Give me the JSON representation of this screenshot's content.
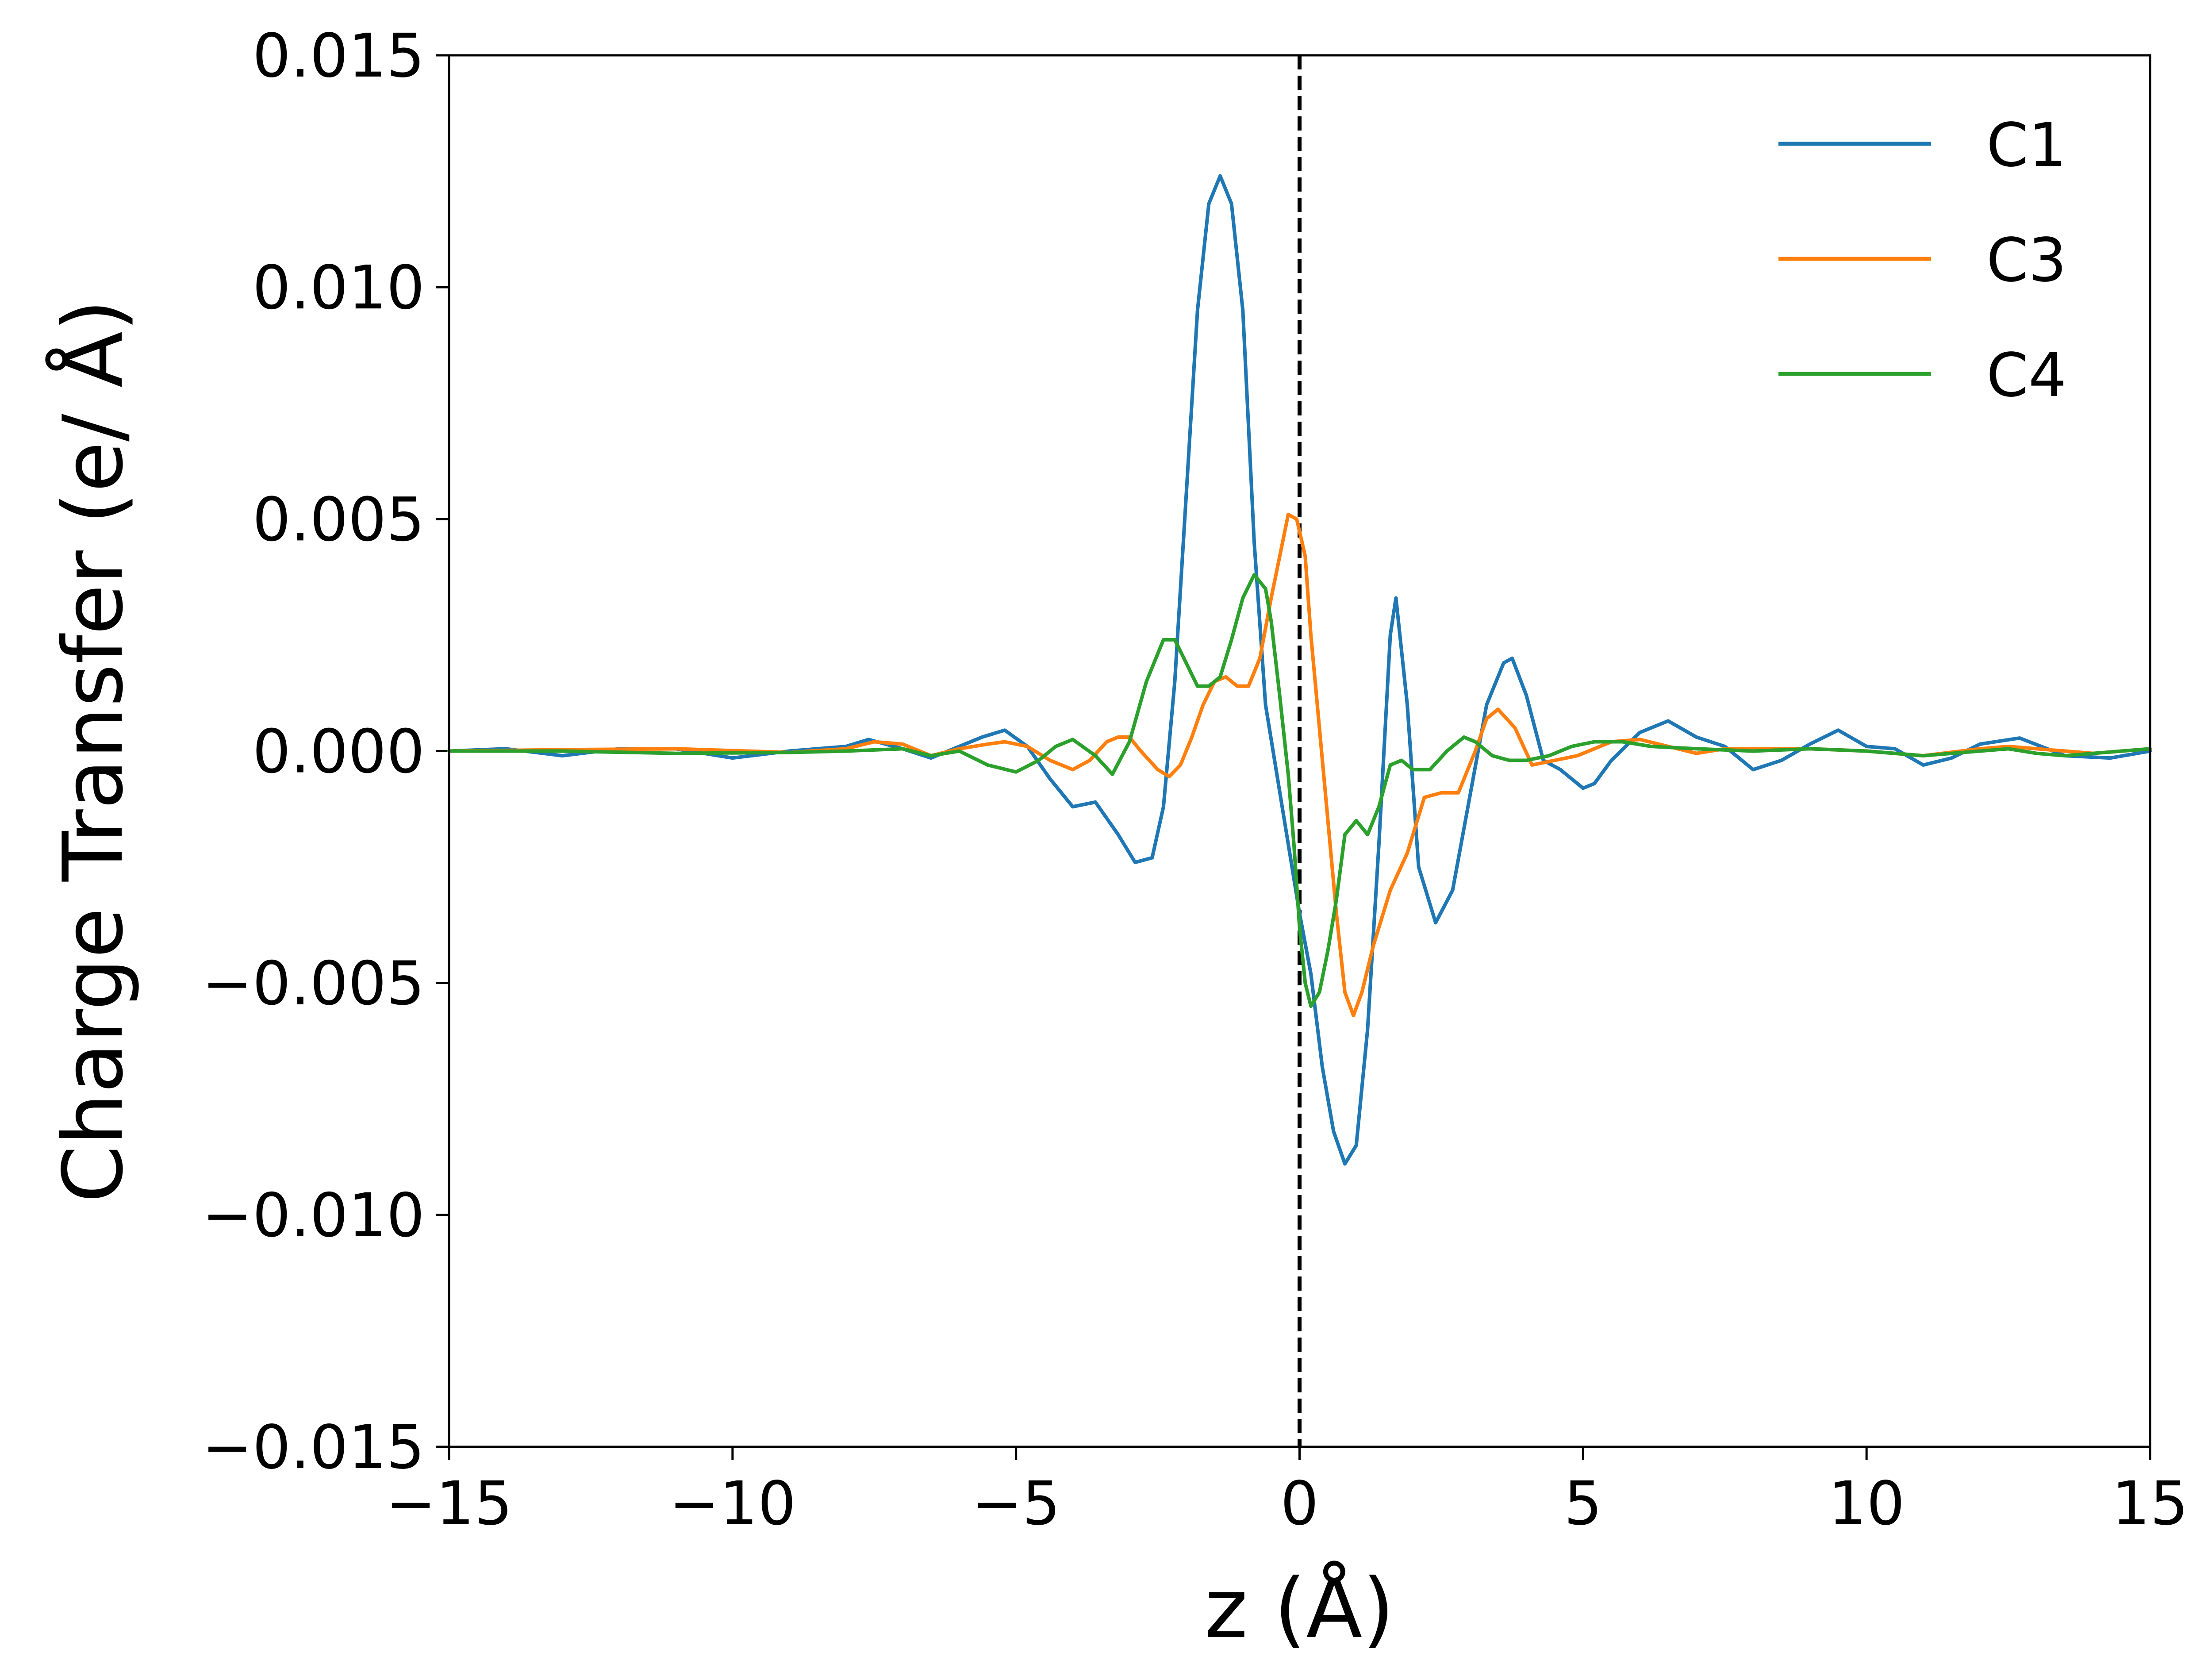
{
  "chart_data": {
    "type": "line",
    "title": "",
    "xlabel": "z (Å)",
    "ylabel": "Charge Transfer (e/ Å)",
    "xlim": [
      -15,
      15
    ],
    "ylim": [
      -0.015,
      0.015
    ],
    "xticks": [
      -15,
      -10,
      -5,
      0,
      5,
      10,
      15
    ],
    "xtick_labels": [
      "−15",
      "−10",
      "−5",
      "0",
      "5",
      "10",
      "15"
    ],
    "yticks": [
      0.015,
      0.01,
      0.005,
      0.0,
      -0.005,
      -0.01,
      -0.015
    ],
    "ytick_labels": [
      "0.015",
      "0.010",
      "0.005",
      "0.000",
      "−0.005",
      "−0.010",
      "−0.015"
    ],
    "grid": false,
    "legend_position": "upper-right",
    "reference_line": {
      "axis": "x",
      "value": 0,
      "style": "dashed",
      "color": "#000000"
    },
    "series": [
      {
        "name": "C1",
        "color": "#1f77b4",
        "x": [
          -15,
          -14,
          -13,
          -12,
          -11,
          -10,
          -9,
          -8,
          -7.6,
          -7,
          -6.5,
          -6,
          -5.6,
          -5.2,
          -4.8,
          -4.4,
          -4.0,
          -3.6,
          -3.2,
          -2.9,
          -2.6,
          -2.4,
          -2.2,
          -2.0,
          -1.8,
          -1.6,
          -1.4,
          -1.2,
          -1.0,
          -0.8,
          -0.6,
          -0.4,
          -0.2,
          0.0,
          0.2,
          0.4,
          0.6,
          0.8,
          1.0,
          1.2,
          1.4,
          1.6,
          1.7,
          1.9,
          2.1,
          2.4,
          2.7,
          3.0,
          3.3,
          3.6,
          3.75,
          4.0,
          4.3,
          4.6,
          5.0,
          5.2,
          5.5,
          6.0,
          6.5,
          7.0,
          7.5,
          8.0,
          8.5,
          9.0,
          9.5,
          10.0,
          10.5,
          11.0,
          11.5,
          12.0,
          12.7,
          13.5,
          14.3,
          15.0
        ],
        "y": [
          0.0,
          5e-05,
          -0.0001,
          5e-05,
          5e-05,
          -0.00015,
          0.0,
          0.0001,
          0.00025,
          5e-05,
          -0.00015,
          0.0001,
          0.0003,
          0.00045,
          0.0001,
          -0.0006,
          -0.0012,
          -0.0011,
          -0.0018,
          -0.0024,
          -0.0023,
          -0.0012,
          0.0015,
          0.0055,
          0.0095,
          0.0118,
          0.0124,
          0.0118,
          0.0095,
          0.0045,
          0.001,
          -0.0005,
          -0.002,
          -0.0035,
          -0.0048,
          -0.0068,
          -0.0082,
          -0.0089,
          -0.0085,
          -0.006,
          -0.002,
          0.0025,
          0.0033,
          0.001,
          -0.0025,
          -0.0037,
          -0.003,
          -0.001,
          0.001,
          0.0019,
          0.002,
          0.0012,
          -0.0002,
          -0.0004,
          -0.0008,
          -0.0007,
          -0.0002,
          0.0004,
          0.00065,
          0.0003,
          0.0001,
          -0.0004,
          -0.0002,
          0.00015,
          0.00045,
          0.0001,
          5e-05,
          -0.0003,
          -0.00015,
          0.00015,
          0.00028,
          -0.0001,
          -0.00015,
          0.0
        ]
      },
      {
        "name": "C3",
        "color": "#ff7f0e",
        "x": [
          -15,
          -13,
          -11,
          -9,
          -8,
          -7.5,
          -7,
          -6.5,
          -6,
          -5.5,
          -5.2,
          -4.8,
          -4.4,
          -4.0,
          -3.7,
          -3.4,
          -3.2,
          -3.0,
          -2.8,
          -2.5,
          -2.3,
          -2.1,
          -1.9,
          -1.7,
          -1.5,
          -1.3,
          -1.1,
          -0.9,
          -0.7,
          -0.5,
          -0.3,
          -0.2,
          -0.05,
          0.1,
          0.2,
          0.35,
          0.5,
          0.65,
          0.8,
          0.95,
          1.1,
          1.3,
          1.6,
          1.9,
          2.2,
          2.5,
          2.8,
          3.1,
          3.3,
          3.5,
          3.8,
          4.1,
          4.5,
          4.9,
          5.5,
          6.0,
          6.5,
          7.0,
          7.5,
          8.0,
          9.0,
          10.0,
          11.0,
          12.0,
          12.5,
          13.0,
          14.0,
          15.0
        ],
        "y": [
          0.0,
          3e-05,
          5e-05,
          -3e-05,
          5e-05,
          0.0002,
          0.00015,
          -0.0001,
          5e-05,
          0.00015,
          0.0002,
          0.0001,
          -0.0002,
          -0.0004,
          -0.0002,
          0.0002,
          0.0003,
          0.0003,
          0.0,
          -0.0004,
          -0.00055,
          -0.0003,
          0.0003,
          0.001,
          0.0015,
          0.0016,
          0.0014,
          0.0014,
          0.002,
          0.0033,
          0.0045,
          0.0051,
          0.005,
          0.0042,
          0.0025,
          0.0005,
          -0.0015,
          -0.0035,
          -0.0052,
          -0.0057,
          -0.0052,
          -0.0042,
          -0.003,
          -0.0022,
          -0.001,
          -0.0009,
          -0.0009,
          0.0,
          0.0007,
          0.0009,
          0.0005,
          -0.0003,
          -0.0002,
          -0.0001,
          0.0002,
          0.00025,
          0.0001,
          -5e-05,
          5e-05,
          5e-05,
          5e-05,
          0.0,
          -0.0001,
          5e-05,
          0.0001,
          5e-05,
          -5e-05,
          5e-05
        ]
      },
      {
        "name": "C4",
        "color": "#2ca02c",
        "x": [
          -15,
          -13,
          -11,
          -9,
          -8,
          -7,
          -6.5,
          -6,
          -5.5,
          -5.0,
          -4.6,
          -4.3,
          -4.0,
          -3.6,
          -3.3,
          -3.0,
          -2.7,
          -2.4,
          -2.2,
          -2.0,
          -1.8,
          -1.6,
          -1.4,
          -1.2,
          -1.0,
          -0.8,
          -0.6,
          -0.5,
          -0.35,
          -0.2,
          -0.1,
          0.0,
          0.1,
          0.2,
          0.35,
          0.5,
          0.65,
          0.8,
          1.0,
          1.2,
          1.4,
          1.6,
          1.8,
          2.0,
          2.3,
          2.6,
          2.9,
          3.1,
          3.4,
          3.7,
          4.0,
          4.4,
          4.8,
          5.2,
          5.7,
          6.2,
          7.0,
          8.0,
          9.0,
          10.0,
          11.0,
          12.0,
          12.5,
          13.0,
          13.5,
          14.0,
          15.0
        ],
        "y": [
          0.0,
          0.0,
          -5e-05,
          -3e-05,
          0.0,
          5e-05,
          -0.0001,
          0.0,
          -0.0003,
          -0.00045,
          -0.0002,
          0.0001,
          0.00025,
          -0.0001,
          -0.0005,
          0.0002,
          0.0015,
          0.0024,
          0.0024,
          0.0019,
          0.0014,
          0.0014,
          0.0016,
          0.0024,
          0.0033,
          0.0038,
          0.0035,
          0.0028,
          0.0012,
          -0.0005,
          -0.002,
          -0.0038,
          -0.005,
          -0.0055,
          -0.0052,
          -0.0043,
          -0.0032,
          -0.0018,
          -0.0015,
          -0.0018,
          -0.0012,
          -0.0003,
          -0.0002,
          -0.0004,
          -0.0004,
          0.0,
          0.0003,
          0.0002,
          -0.0001,
          -0.0002,
          -0.0002,
          -0.0001,
          0.0001,
          0.0002,
          0.0002,
          0.0001,
          5e-05,
          0.0,
          5e-05,
          0.0,
          -0.0001,
          0.0,
          5e-05,
          -5e-05,
          -0.0001,
          -5e-05,
          5e-05
        ]
      }
    ]
  }
}
